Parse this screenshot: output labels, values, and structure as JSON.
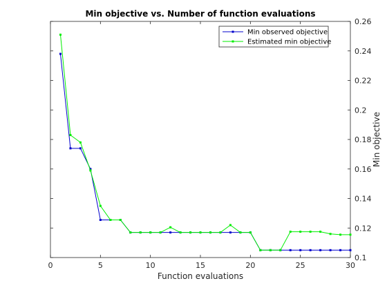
{
  "chart_data": {
    "type": "line",
    "title": "Min objective vs. Number of function evaluations",
    "xlabel": "Function evaluations",
    "ylabel": "Min objective",
    "xlim": [
      0,
      30
    ],
    "ylim": [
      0.1,
      0.26
    ],
    "y_axis_side": "right",
    "x_ticks": [
      "0",
      "5",
      "10",
      "15",
      "20",
      "25",
      "30"
    ],
    "y_ticks": [
      "0.1",
      "0.12",
      "0.14",
      "0.16",
      "0.18",
      "0.2",
      "0.22",
      "0.24",
      "0.26"
    ],
    "grid": false,
    "legend_position": "top-right",
    "x": [
      1,
      2,
      3,
      4,
      5,
      6,
      7,
      8,
      9,
      10,
      11,
      12,
      13,
      14,
      15,
      16,
      17,
      18,
      19,
      20,
      21,
      22,
      23,
      24,
      25,
      26,
      27,
      28,
      29,
      30
    ],
    "series": [
      {
        "name": "Min observed objective",
        "color": "#0000cc",
        "marker": "square",
        "values": [
          0.238,
          0.174,
          0.174,
          0.16,
          0.1255,
          0.1255,
          0.1255,
          0.117,
          0.117,
          0.117,
          0.117,
          0.117,
          0.117,
          0.117,
          0.117,
          0.117,
          0.117,
          0.117,
          0.117,
          0.117,
          0.105,
          0.105,
          0.105,
          0.105,
          0.105,
          0.105,
          0.105,
          0.105,
          0.105,
          0.105
        ]
      },
      {
        "name": "Estimated min objective",
        "color": "#00ee00",
        "marker": "square",
        "values": [
          0.251,
          0.183,
          0.178,
          0.159,
          0.135,
          0.1255,
          0.1255,
          0.117,
          0.117,
          0.117,
          0.117,
          0.1205,
          0.117,
          0.117,
          0.117,
          0.117,
          0.117,
          0.122,
          0.117,
          0.117,
          0.105,
          0.105,
          0.105,
          0.1175,
          0.1175,
          0.1175,
          0.1175,
          0.116,
          0.1155,
          0.1155
        ]
      }
    ]
  }
}
